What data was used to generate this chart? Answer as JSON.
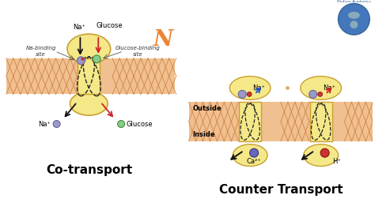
{
  "background_color": "#ffffff",
  "membrane_color": "#f0c090",
  "membrane_stripe_color": "#d08040",
  "protein_color": "#f5e888",
  "protein_outline": "#c8a030",
  "na_color": "#9999cc",
  "na_color2": "#cc4444",
  "glucose_color": "#88cc88",
  "ca_color": "#6666bb",
  "h_color": "#cc4444",
  "arrow_black": "#111111",
  "arrow_blue": "#2255cc",
  "arrow_red": "#cc2222",
  "label_na": "Na⁺",
  "label_glucose": "Glucose",
  "label_na_binding": "Na-binding\nsite",
  "label_glucose_binding": "Glucose-binding\nsite",
  "label_cotransport": "Co-transport",
  "label_counter": "Counter Transport",
  "label_outside": "Outside",
  "label_inside": "Inside",
  "label_ca": "Ca²⁺",
  "label_h": "H⁺",
  "dashed_color": "#222222",
  "font_title_size": 11,
  "font_label_size": 6,
  "font_small_size": 5.5
}
